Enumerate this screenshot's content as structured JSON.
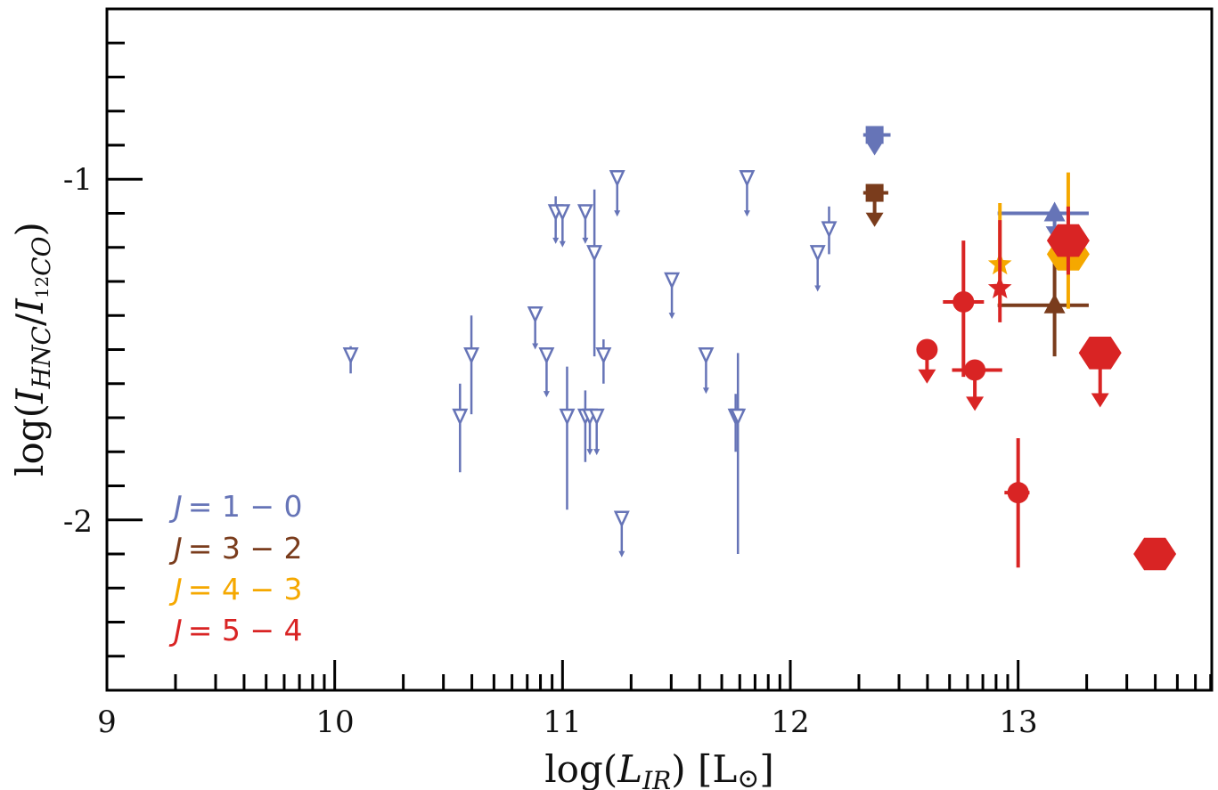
{
  "chart_data": {
    "type": "scatter",
    "title": "",
    "xlabel": {
      "prefix": "log(",
      "var": "L",
      "sub": "IR",
      "suffix": ") [L",
      "sun": "⊙",
      "close": "]"
    },
    "ylabel": {
      "prefix": "log(",
      "var1": "I",
      "sub1": "HNC",
      "slash": "/",
      "var2": "I",
      "iso": "12",
      "sub2": "CO",
      "close": ")"
    },
    "xlim": [
      9,
      13.85
    ],
    "ylim": [
      -2.5,
      -0.5
    ],
    "x_ticks": [
      "9",
      "10",
      "11",
      "12",
      "13"
    ],
    "y_ticks": [
      "-1",
      "-2"
    ],
    "colors": {
      "j10": "#6674b7",
      "j32": "#7a3c1c",
      "j43": "#f5a800",
      "j54": "#d92424"
    },
    "legend": [
      {
        "label": "J = 1 − 0",
        "var": "J",
        "rest": "= 1 − 0",
        "color_key": "j10"
      },
      {
        "label": "J = 3 − 2",
        "var": "J",
        "rest": "= 3 − 2",
        "color_key": "j32"
      },
      {
        "label": "J = 4 − 3",
        "var": "J",
        "rest": "= 4 − 3",
        "color_key": "j43"
      },
      {
        "label": "J = 5 − 4",
        "var": "J",
        "rest": "= 5 − 4",
        "color_key": "j54"
      }
    ],
    "series": [
      {
        "name": "J=1-0 upper limits (open triangles)",
        "color_key": "j10",
        "marker": "open-triangle-down",
        "points": [
          {
            "x": 10.07,
            "y": -1.52,
            "ey": [
              0.03,
              0.05
            ],
            "ul": 0
          },
          {
            "x": 10.55,
            "y": -1.7,
            "ey": [
              0.1,
              0.16
            ],
            "ul": 0
          },
          {
            "x": 10.6,
            "y": -1.52,
            "ey": [
              0.12,
              0.17
            ],
            "ul": 0
          },
          {
            "x": 10.88,
            "y": -1.4,
            "ey": [
              0,
              0
            ],
            "ul": 0.1
          },
          {
            "x": 10.93,
            "y": -1.52,
            "ey": [
              0,
              0
            ],
            "ul": 0.12
          },
          {
            "x": 10.97,
            "y": -1.1,
            "ey": [
              0.05,
              0
            ],
            "ul": 0.09
          },
          {
            "x": 11.0,
            "y": -1.1,
            "ey": [
              0,
              0
            ],
            "ul": 0.1
          },
          {
            "x": 11.02,
            "y": -1.7,
            "ey": [
              0.15,
              0.27
            ],
            "ul": 0
          },
          {
            "x": 11.1,
            "y": -1.1,
            "ey": [
              0,
              0
            ],
            "ul": 0.09
          },
          {
            "x": 11.1,
            "y": -1.7,
            "ey": [
              0.08,
              0.13
            ],
            "ul": 0
          },
          {
            "x": 11.12,
            "y": -1.7,
            "ey": [
              0,
              0
            ],
            "ul": 0.11
          },
          {
            "x": 11.15,
            "y": -1.7,
            "ey": [
              0,
              0
            ],
            "ul": 0.11
          },
          {
            "x": 11.14,
            "y": -1.22,
            "ey": [
              0.19,
              0.3
            ],
            "ul": 0
          },
          {
            "x": 11.18,
            "y": -1.52,
            "ey": [
              0.05,
              0.08
            ],
            "ul": 0
          },
          {
            "x": 11.24,
            "y": -1.0,
            "ey": [
              0,
              0
            ],
            "ul": 0.11
          },
          {
            "x": 11.26,
            "y": -2.0,
            "ey": [
              0,
              0
            ],
            "ul": 0.11
          },
          {
            "x": 11.48,
            "y": -1.3,
            "ey": [
              0,
              0
            ],
            "ul": 0.11
          },
          {
            "x": 11.63,
            "y": -1.52,
            "ey": [
              0,
              0
            ],
            "ul": 0.11
          },
          {
            "x": 11.76,
            "y": -1.7,
            "ey": [
              0.07,
              0.1
            ],
            "ul": 0
          },
          {
            "x": 11.77,
            "y": -1.7,
            "ey": [
              0.19,
              0.4
            ],
            "ul": 0
          },
          {
            "x": 11.81,
            "y": -1.0,
            "ey": [
              0,
              0
            ],
            "ul": 0.11
          },
          {
            "x": 12.12,
            "y": -1.22,
            "ey": [
              0,
              0
            ],
            "ul": 0.11
          },
          {
            "x": 12.17,
            "y": -1.15,
            "ey": [
              0.07,
              0.07
            ],
            "ul": 0
          }
        ]
      },
      {
        "name": "J=1-0 upper limits (filled)",
        "color_key": "j10",
        "marker": "filled",
        "points": [
          {
            "x": 12.37,
            "y": -0.87,
            "ex": [
              0.05,
              0.07
            ],
            "ul": 0.06,
            "shape": "square"
          },
          {
            "x": 13.16,
            "y": -1.1,
            "ex": [
              0.25,
              0.15
            ],
            "ul": 0.08,
            "shape": "triangle-up"
          }
        ]
      },
      {
        "name": "J=3-2",
        "color_key": "j32",
        "marker": "filled",
        "points": [
          {
            "x": 12.37,
            "y": -1.04,
            "ex": [
              0.05,
              0.06
            ],
            "ul": 0.1,
            "shape": "square"
          },
          {
            "x": 13.16,
            "y": -1.37,
            "ex": [
              0.25,
              0.15
            ],
            "ey": [
              0.15,
              0.15
            ],
            "shape": "triangle-up"
          }
        ]
      },
      {
        "name": "J=4-3",
        "color_key": "j43",
        "marker": "filled",
        "points": [
          {
            "x": 12.92,
            "y": -1.25,
            "ey": [
              0.18,
              0.12
            ],
            "shape": "star"
          },
          {
            "x": 13.22,
            "y": -1.22,
            "ey": [
              0.24,
              0.16
            ],
            "shape": "hexagon"
          }
        ]
      },
      {
        "name": "J=5-4",
        "color_key": "j54",
        "marker": "filled",
        "points": [
          {
            "x": 12.6,
            "y": -1.5,
            "ul": 0.1,
            "shape": "circle"
          },
          {
            "x": 12.76,
            "y": -1.36,
            "ex": [
              0.09,
              0.09
            ],
            "ey": [
              0.18,
              0.22
            ],
            "shape": "circle"
          },
          {
            "x": 12.81,
            "y": -1.56,
            "ex": [
              0.1,
              0.12
            ],
            "ul": 0.12,
            "shape": "circle"
          },
          {
            "x": 12.92,
            "y": -1.32,
            "ey": [
              0.2,
              0.1
            ],
            "shape": "star"
          },
          {
            "x": 13.0,
            "y": -1.92,
            "ex": [
              0.06,
              0.05
            ],
            "ey": [
              0.16,
              0.22
            ],
            "shape": "circle"
          },
          {
            "x": 13.22,
            "y": -1.18,
            "ey": [
              0.1,
              0.1
            ],
            "shape": "hexagon"
          },
          {
            "x": 13.36,
            "y": -1.51,
            "ul": 0.16,
            "shape": "hexagon"
          },
          {
            "x": 13.6,
            "y": -2.1,
            "shape": "hexagon"
          }
        ]
      }
    ]
  }
}
